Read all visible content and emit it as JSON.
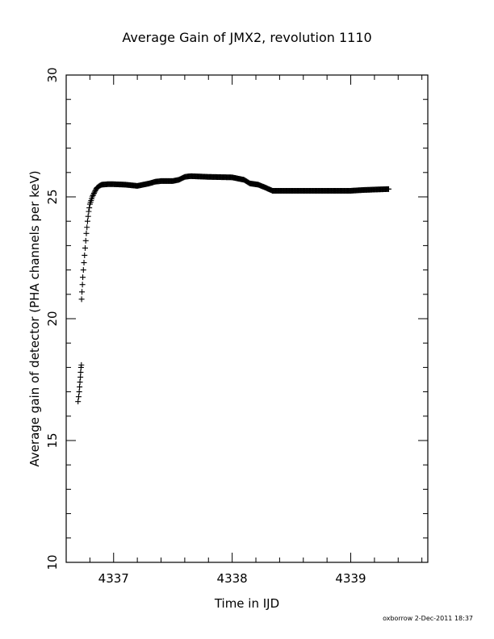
{
  "chart_data": {
    "type": "scatter",
    "title": "Average Gain of JMX2, revolution 1110",
    "xlabel": "Time in IJD",
    "ylabel": "Average gain of detector (PHA channels per keV)",
    "xlim": [
      4336.6,
      4339.65
    ],
    "ylim": [
      10,
      30
    ],
    "xticks": [
      4337,
      4338,
      4339
    ],
    "xtick_labels": [
      "4337",
      "4338",
      "4339"
    ],
    "yticks": [
      10,
      15,
      20,
      25,
      30
    ],
    "ytick_labels": [
      "10",
      "15",
      "20",
      "25",
      "30"
    ],
    "x_minor_step": 0.2,
    "y_minor_step": 1,
    "grid": false,
    "marker": "+",
    "color": "#000000",
    "series": [
      {
        "points": [
          [
            4336.7,
            16.6
          ],
          [
            4336.705,
            16.8
          ],
          [
            4336.71,
            17.0
          ],
          [
            4336.713,
            17.2
          ],
          [
            4336.716,
            17.4
          ],
          [
            4336.72,
            17.6
          ],
          [
            4336.722,
            17.8
          ],
          [
            4336.725,
            18.0
          ],
          [
            4336.728,
            18.1
          ],
          [
            4336.73,
            20.8
          ],
          [
            4336.733,
            21.1
          ],
          [
            4336.737,
            21.4
          ],
          [
            4336.74,
            21.7
          ],
          [
            4336.745,
            22.0
          ],
          [
            4336.75,
            22.3
          ],
          [
            4336.755,
            22.6
          ],
          [
            4336.76,
            22.9
          ],
          [
            4336.765,
            23.2
          ],
          [
            4336.77,
            23.5
          ],
          [
            4336.775,
            23.75
          ],
          [
            4336.78,
            24.0
          ],
          [
            4336.785,
            24.2
          ],
          [
            4336.79,
            24.4
          ],
          [
            4336.795,
            24.55
          ],
          [
            4336.8,
            24.7
          ],
          [
            4336.81,
            24.85
          ],
          [
            4336.82,
            25.0
          ],
          [
            4336.83,
            25.1
          ],
          [
            4336.84,
            25.2
          ],
          [
            4336.85,
            25.3
          ],
          [
            4336.86,
            25.38
          ],
          [
            4336.88,
            25.45
          ],
          [
            4336.9,
            25.5
          ],
          [
            4336.95,
            25.52
          ],
          [
            4337.0,
            25.52
          ],
          [
            4337.1,
            25.5
          ],
          [
            4337.2,
            25.45
          ],
          [
            4337.3,
            25.55
          ],
          [
            4337.35,
            25.62
          ],
          [
            4337.4,
            25.65
          ],
          [
            4337.5,
            25.65
          ],
          [
            4337.55,
            25.7
          ],
          [
            4337.6,
            25.82
          ],
          [
            4337.65,
            25.85
          ],
          [
            4337.8,
            25.82
          ],
          [
            4338.0,
            25.8
          ],
          [
            4338.1,
            25.7
          ],
          [
            4338.15,
            25.55
          ],
          [
            4338.22,
            25.5
          ],
          [
            4338.28,
            25.38
          ],
          [
            4338.34,
            25.25
          ],
          [
            4338.5,
            25.25
          ],
          [
            4338.8,
            25.25
          ],
          [
            4339.0,
            25.25
          ],
          [
            4339.1,
            25.28
          ],
          [
            4339.2,
            25.3
          ],
          [
            4339.32,
            25.32
          ]
        ]
      }
    ]
  },
  "footer": {
    "credit": "oxborrow  2-Dec-2011 18:37"
  }
}
